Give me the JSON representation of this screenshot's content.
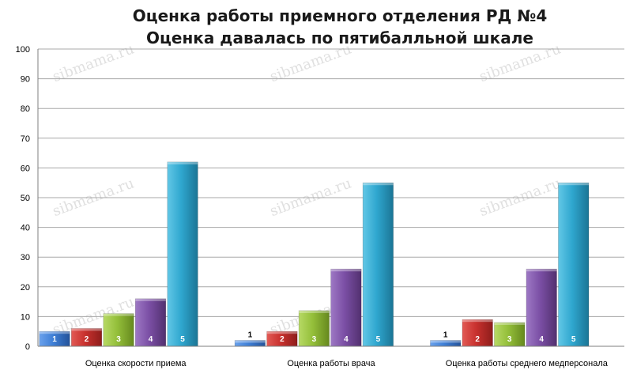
{
  "chart_data": {
    "type": "bar",
    "title": [
      "Оценка работы приемного отделения РД №4",
      "Оценка давалась по пятибалльной шкале"
    ],
    "categories": [
      "Оценка скорости приема",
      "Оценка работы врача",
      "Оценка работы среднего медперсонала"
    ],
    "series": [
      {
        "name": "1",
        "values": [
          5,
          2,
          2
        ]
      },
      {
        "name": "2",
        "values": [
          6,
          5,
          9
        ]
      },
      {
        "name": "3",
        "values": [
          11,
          12,
          8
        ]
      },
      {
        "name": "4",
        "values": [
          16,
          26,
          26
        ]
      },
      {
        "name": "5",
        "values": [
          62,
          55,
          55
        ]
      }
    ],
    "ylim": [
      0,
      100
    ],
    "yticks": [
      0,
      10,
      20,
      30,
      40,
      50,
      60,
      70,
      80,
      90,
      100
    ],
    "grid": true,
    "legend": "none",
    "xlabel": "",
    "ylabel": "",
    "colors": [
      "#3f7fd6",
      "#c8312e",
      "#94bf3a",
      "#7b4fa5",
      "#2fa7cf"
    ],
    "label_colors": [
      "#ffffff",
      "#ffffff",
      "#ffffff",
      "#ffffff",
      "#ffffff"
    ]
  },
  "watermark": "sibmama.ru"
}
